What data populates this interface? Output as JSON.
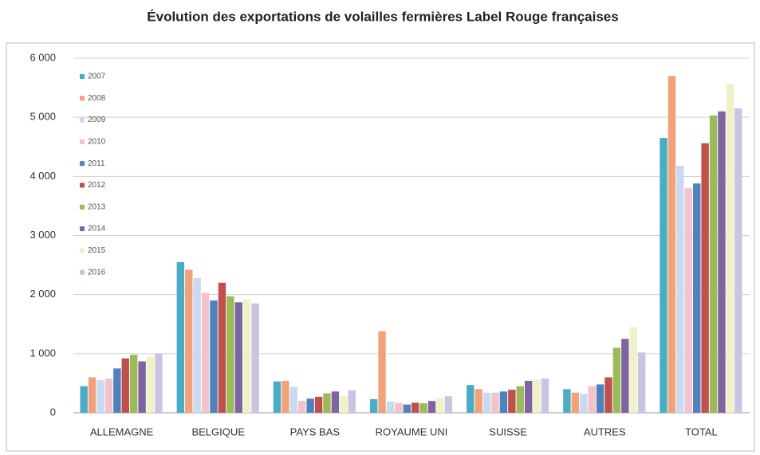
{
  "chart_data": {
    "type": "bar",
    "title": "Évolution des exportations de volailles fermières Label Rouge françaises",
    "categories": [
      "ALLEMAGNE",
      "BELGIQUE",
      "PAYS BAS",
      "ROYAUME UNI",
      "SUISSE",
      "AUTRES",
      "TOTAL"
    ],
    "series": [
      {
        "name": "2007",
        "color": "#4bacc6",
        "values": [
          450,
          2550,
          530,
          230,
          470,
          400,
          4650
        ]
      },
      {
        "name": "2008",
        "color": "#f2a27a",
        "values": [
          600,
          2420,
          540,
          1380,
          400,
          340,
          5700
        ]
      },
      {
        "name": "2009",
        "color": "#c9daf0",
        "values": [
          550,
          2280,
          440,
          190,
          340,
          320,
          4180
        ]
      },
      {
        "name": "2010",
        "color": "#f3c3cb",
        "values": [
          580,
          2030,
          200,
          170,
          340,
          450,
          3800
        ]
      },
      {
        "name": "2011",
        "color": "#4f81bd",
        "values": [
          750,
          1900,
          240,
          140,
          360,
          480,
          3880
        ]
      },
      {
        "name": "2012",
        "color": "#c0504d",
        "values": [
          920,
          2200,
          270,
          170,
          390,
          600,
          4560
        ]
      },
      {
        "name": "2013",
        "color": "#9bbb59",
        "values": [
          980,
          1970,
          330,
          160,
          450,
          1100,
          5030
        ]
      },
      {
        "name": "2014",
        "color": "#8064a2",
        "values": [
          870,
          1870,
          360,
          200,
          540,
          1250,
          5100
        ]
      },
      {
        "name": "2015",
        "color": "#eef2c6",
        "values": [
          950,
          1920,
          280,
          250,
          560,
          1450,
          5560
        ]
      },
      {
        "name": "2016",
        "color": "#cdc2e2",
        "values": [
          1000,
          1850,
          380,
          280,
          580,
          1020,
          5150
        ]
      }
    ],
    "ylim": [
      0,
      6000
    ],
    "yticks": [
      0,
      {
        "value": 1000,
        "label": "1 000"
      },
      {
        "value": 2000,
        "label": "2 000"
      },
      {
        "value": 3000,
        "label": "3 000"
      },
      {
        "value": 4000,
        "label": "4 000"
      },
      {
        "value": 5000,
        "label": "5 000"
      },
      {
        "value": 6000,
        "label": "6 000"
      }
    ],
    "grid": true,
    "legend": "top-left"
  }
}
